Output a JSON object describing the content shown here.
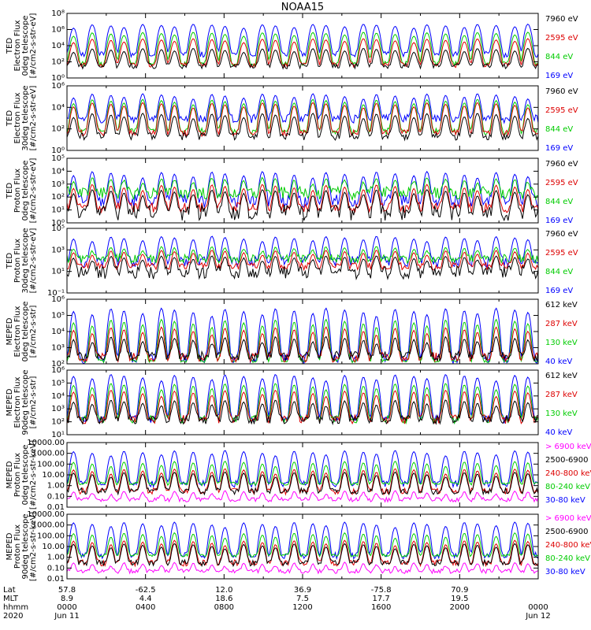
{
  "title": "NOAA15",
  "chart_data": [
    {
      "type": "line",
      "ylabel": [
        "TED",
        "Electron Flux",
        "0deg telescope",
        "[#/cm2-s-str-eV]"
      ],
      "yscale": "log",
      "ylim": [
        1,
        100000000
      ],
      "yticks": [
        {
          "v": 1,
          "label": "10⁰"
        },
        {
          "v": 100,
          "label": "10²"
        },
        {
          "v": 10000,
          "label": "10⁴"
        },
        {
          "v": 1000000,
          "label": "10⁶"
        },
        {
          "v": 100000000,
          "label": "10⁸"
        }
      ],
      "series": [
        {
          "name": "7960 eV",
          "color": "#000000",
          "base": 30,
          "peak": 5000,
          "noise": 0.35
        },
        {
          "name": "2595 eV",
          "color": "#dd0000",
          "base": 40,
          "peak": 80000,
          "noise": 0.3
        },
        {
          "name": "844 eV",
          "color": "#00cc00",
          "base": 60,
          "peak": 500000,
          "noise": 0.3
        },
        {
          "name": "169 eV",
          "color": "#0000ff",
          "base": 800,
          "peak": 5000000,
          "noise": 0.4
        }
      ]
    },
    {
      "type": "line",
      "ylabel": [
        "TED",
        "Electron Flux",
        "30deg telescope",
        "[#/cm2-s-str-eV]"
      ],
      "yscale": "log",
      "ylim": [
        1,
        1000000
      ],
      "yticks": [
        {
          "v": 1,
          "label": "10⁰"
        },
        {
          "v": 100,
          "label": "10²"
        },
        {
          "v": 10000,
          "label": "10⁴"
        },
        {
          "v": 1000000,
          "label": "10⁶"
        }
      ],
      "series": [
        {
          "name": "7960 eV",
          "color": "#000000",
          "base": 20,
          "peak": 3000,
          "noise": 0.35
        },
        {
          "name": "2595 eV",
          "color": "#dd0000",
          "base": 40,
          "peak": 30000,
          "noise": 0.3
        },
        {
          "name": "844 eV",
          "color": "#00cc00",
          "base": 60,
          "peak": 60000,
          "noise": 0.3
        },
        {
          "name": "169 eV",
          "color": "#0000ff",
          "base": 900,
          "peak": 200000,
          "noise": 0.4
        }
      ]
    },
    {
      "type": "line",
      "ylabel": [
        "TED",
        "Proton Flux",
        "0deg telescope",
        "[#/cm2-s-str-eV]"
      ],
      "yscale": "log",
      "ylim": [
        1,
        100000
      ],
      "yticks": [
        {
          "v": 1,
          "label": "10⁰"
        },
        {
          "v": 10,
          "label": "10¹"
        },
        {
          "v": 100,
          "label": "10²"
        },
        {
          "v": 1000,
          "label": "10³"
        },
        {
          "v": 10000,
          "label": "10⁴"
        },
        {
          "v": 100000,
          "label": "10⁵"
        }
      ],
      "series": [
        {
          "name": "7960 eV",
          "color": "#000000",
          "base": 6,
          "peak": 400,
          "noise": 0.6
        },
        {
          "name": "2595 eV",
          "color": "#dd0000",
          "base": 15,
          "peak": 1000,
          "noise": 0.4
        },
        {
          "name": "844 eV",
          "color": "#00cc00",
          "base": 200,
          "peak": 3000,
          "noise": 0.5
        },
        {
          "name": "169 eV",
          "color": "#0000ff",
          "base": 50,
          "peak": 10000,
          "noise": 0.5
        }
      ]
    },
    {
      "type": "line",
      "ylabel": [
        "TED",
        "Proton Flux",
        "30deg telescope",
        "[#/cm2-s-str-eV]"
      ],
      "yscale": "log",
      "ylim": [
        0.1,
        100000
      ],
      "yticks": [
        {
          "v": 0.1,
          "label": "10⁻¹"
        },
        {
          "v": 10,
          "label": "10¹"
        },
        {
          "v": 1000,
          "label": "10³"
        },
        {
          "v": 100000,
          "label": "10⁵"
        }
      ],
      "series": [
        {
          "name": "7960 eV",
          "color": "#000000",
          "base": 8,
          "peak": 300,
          "noise": 0.6
        },
        {
          "name": "2595 eV",
          "color": "#dd0000",
          "base": 30,
          "peak": 1000,
          "noise": 0.35
        },
        {
          "name": "844 eV",
          "color": "#00cc00",
          "base": 150,
          "peak": 2000,
          "noise": 0.4
        },
        {
          "name": "169 eV",
          "color": "#0000ff",
          "base": 80,
          "peak": 20000,
          "noise": 0.5
        }
      ]
    },
    {
      "type": "line",
      "ylabel": [
        "MEPED",
        "Electron Flux",
        "0deg telescope",
        "[#/cm2-s-str]"
      ],
      "yscale": "log",
      "ylim": [
        100,
        1000000
      ],
      "yticks": [
        {
          "v": 100,
          "label": "10²"
        },
        {
          "v": 1000,
          "label": "10³"
        },
        {
          "v": 10000,
          "label": "10⁴"
        },
        {
          "v": 100000,
          "label": "10⁵"
        },
        {
          "v": 1000000,
          "label": "10⁶"
        }
      ],
      "series": [
        {
          "name": "612 keV",
          "color": "#000000",
          "base": 300,
          "peak": 5000,
          "noise": 0.3
        },
        {
          "name": "287 keV",
          "color": "#dd0000",
          "base": 250,
          "peak": 20000,
          "noise": 0.3
        },
        {
          "name": "130 keV",
          "color": "#00cc00",
          "base": 150,
          "peak": 60000,
          "noise": 0.1
        },
        {
          "name": "40 keV",
          "color": "#0000ff",
          "base": 200,
          "peak": 300000,
          "noise": 0.3
        }
      ]
    },
    {
      "type": "line",
      "ylabel": [
        "MEPED",
        "Electron Flux",
        "90deg telescope",
        "[#/cm2-s-str]"
      ],
      "yscale": "log",
      "ylim": [
        10,
        1000000
      ],
      "yticks": [
        {
          "v": 10,
          "label": "10¹"
        },
        {
          "v": 100,
          "label": "10²"
        },
        {
          "v": 1000,
          "label": "10³"
        },
        {
          "v": 10000,
          "label": "10⁴"
        },
        {
          "v": 100000,
          "label": "10⁵"
        },
        {
          "v": 1000000,
          "label": "10⁶"
        }
      ],
      "series": [
        {
          "name": "612 keV",
          "color": "#000000",
          "base": 150,
          "peak": 5000,
          "noise": 0.35
        },
        {
          "name": "287 keV",
          "color": "#dd0000",
          "base": 150,
          "peak": 30000,
          "noise": 0.35
        },
        {
          "name": "130 keV",
          "color": "#00cc00",
          "base": 150,
          "peak": 100000,
          "noise": 0.3
        },
        {
          "name": "40 keV",
          "color": "#0000ff",
          "base": 150,
          "peak": 500000,
          "noise": 0.3
        }
      ]
    },
    {
      "type": "line",
      "ylabel": [
        "MEPED",
        "Proton Flux",
        "0deg telescope",
        "[#/cm2-s-str-keV]"
      ],
      "yscale": "log",
      "ylim": [
        0.01,
        10000
      ],
      "yticks": [
        {
          "v": 0.01,
          "label": "0.01"
        },
        {
          "v": 0.1,
          "label": "0.10"
        },
        {
          "v": 1,
          "label": "1.00"
        },
        {
          "v": 10,
          "label": "10.00"
        },
        {
          "v": 100,
          "label": "100.00"
        },
        {
          "v": 1000,
          "label": "1000.00"
        },
        {
          "v": 10000,
          "label": "10000.00"
        }
      ],
      "series": [
        {
          "name": "> 6900 keV",
          "color": "#ff00ff",
          "base": 0.05,
          "peak": 0.3,
          "noise": 0.2
        },
        {
          "name": "2500-6900",
          "color": "#000000",
          "base": 0.3,
          "peak": 20,
          "noise": 0.3
        },
        {
          "name": "240-800 keV",
          "color": "#dd0000",
          "base": 0.3,
          "peak": 40,
          "noise": 0.3
        },
        {
          "name": "80-240 keV",
          "color": "#00cc00",
          "base": 1.5,
          "peak": 200,
          "noise": 0.15
        },
        {
          "name": "30-80 keV",
          "color": "#0000ff",
          "base": 1.5,
          "peak": 2000,
          "noise": 0.3
        }
      ]
    },
    {
      "type": "line",
      "ylabel": [
        "MEPED",
        "Proton Flux",
        "90deg telescope",
        "[#/cm2-s-str-keV]"
      ],
      "yscale": "log",
      "ylim": [
        0.01,
        10000
      ],
      "yticks": [
        {
          "v": 0.01,
          "label": "0.01"
        },
        {
          "v": 0.1,
          "label": "0.10"
        },
        {
          "v": 1,
          "label": "1.00"
        },
        {
          "v": 10,
          "label": "10.00"
        },
        {
          "v": 100,
          "label": "100.00"
        },
        {
          "v": 1000,
          "label": "1000.00"
        },
        {
          "v": 10000,
          "label": "10000.00"
        }
      ],
      "series": [
        {
          "name": "> 6900 keV",
          "color": "#ff00ff",
          "base": 0.05,
          "peak": 0.3,
          "noise": 0.2
        },
        {
          "name": "2500-6900",
          "color": "#000000",
          "base": 0.3,
          "peak": 20,
          "noise": 0.3
        },
        {
          "name": "240-800 keV",
          "color": "#dd0000",
          "base": 0.3,
          "peak": 40,
          "noise": 0.3
        },
        {
          "name": "80-240 keV",
          "color": "#00cc00",
          "base": 1.5,
          "peak": 200,
          "noise": 0.15
        },
        {
          "name": "30-80 keV",
          "color": "#0000ff",
          "base": 1.5,
          "peak": 2000,
          "noise": 0.3
        }
      ]
    }
  ],
  "footer": {
    "row_labels": [
      "Lat",
      "MLT",
      "hhmm",
      "2020"
    ],
    "columns": [
      {
        "lat": "57.8",
        "mlt": "8.9",
        "hhmm": "0000",
        "date": "Jun 11"
      },
      {
        "lat": "-62.5",
        "mlt": "4.4",
        "hhmm": "0400",
        "date": ""
      },
      {
        "lat": "12.0",
        "mlt": "18.6",
        "hhmm": "0800",
        "date": ""
      },
      {
        "lat": "36.9",
        "mlt": "7.5",
        "hhmm": "1200",
        "date": ""
      },
      {
        "lat": "-75.8",
        "mlt": "17.7",
        "hhmm": "1600",
        "date": ""
      },
      {
        "lat": "70.9",
        "mlt": "19.5",
        "hhmm": "2000",
        "date": ""
      },
      {
        "lat": "",
        "mlt": "",
        "hhmm": "0000",
        "date": "Jun 12"
      }
    ]
  }
}
